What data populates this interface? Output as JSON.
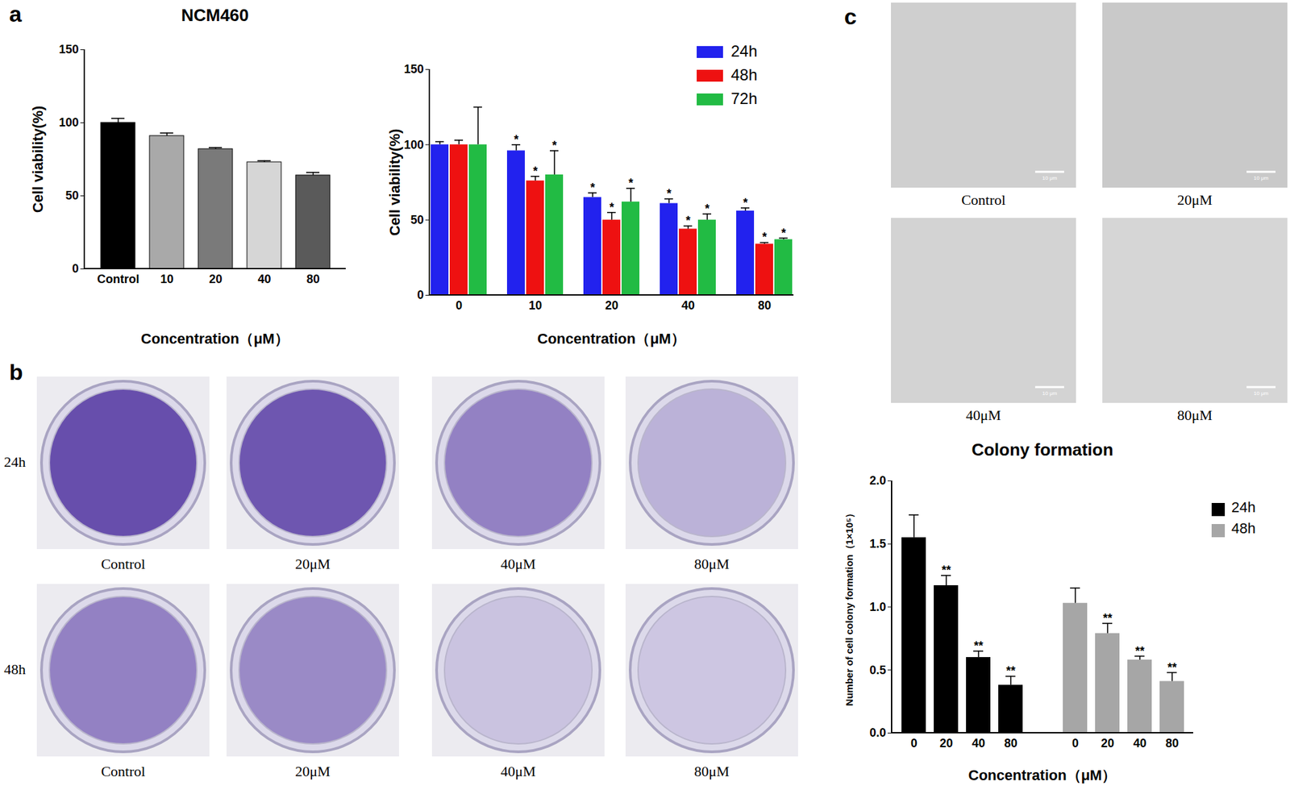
{
  "panel_labels": [
    "a",
    "b",
    "c"
  ],
  "chart_data": [
    {
      "type": "bar",
      "title": "NCM460",
      "x_label": "Concentration（μM）",
      "y_label": "Cell viability(%)",
      "categories": [
        "Control",
        "10",
        "20",
        "40",
        "80"
      ],
      "values": [
        100,
        91,
        82,
        73,
        64
      ],
      "errors": [
        3,
        2,
        1,
        1,
        2
      ],
      "colors": [
        "#000000",
        "#a9a9a9",
        "#7a7a7a",
        "#d6d6d6",
        "#5a5a5a"
      ],
      "ylim": [
        0,
        150
      ],
      "yticks": [
        0,
        50,
        100,
        150
      ],
      "grid": false
    },
    {
      "type": "grouped_bar",
      "x_label": "Concentration（μM）",
      "y_label": "Cell viability(%)",
      "categories": [
        "0",
        "10",
        "20",
        "40",
        "80"
      ],
      "series": [
        {
          "name": "24h",
          "color": "#2222ee",
          "values": [
            100,
            96,
            65,
            61,
            56
          ],
          "errors": [
            2,
            4,
            3,
            3,
            2
          ],
          "annotations": [
            null,
            "*",
            "*",
            "*",
            "*"
          ]
        },
        {
          "name": "48h",
          "color": "#ee1111",
          "values": [
            100,
            76,
            50,
            44,
            34
          ],
          "errors": [
            3,
            3,
            5,
            2,
            1
          ],
          "annotations": [
            null,
            "*",
            "*",
            "*",
            "*"
          ]
        },
        {
          "name": "72h",
          "color": "#22bb44",
          "values": [
            100,
            80,
            62,
            50,
            37
          ],
          "errors": [
            25,
            16,
            9,
            4,
            1
          ],
          "annotations": [
            null,
            "*",
            "*",
            "*",
            "*"
          ]
        }
      ],
      "ylim": [
        0,
        150
      ],
      "yticks": [
        0,
        50,
        100,
        150
      ],
      "legend": "top-right",
      "grid": false
    },
    {
      "type": "bar_by_series",
      "title": "Colony formation",
      "x_label": "Concentration（μM）",
      "y_label": "Number of cell colony formation（1×10⁵）",
      "categories": [
        "0",
        "20",
        "40",
        "80"
      ],
      "series": [
        {
          "name": "24h",
          "color": "#000000",
          "values": [
            1.55,
            1.17,
            0.6,
            0.38
          ],
          "errors": [
            0.18,
            0.08,
            0.05,
            0.07
          ],
          "annotations": [
            null,
            "**",
            "**",
            "**"
          ]
        },
        {
          "name": "48h",
          "color": "#a6a6a6",
          "values": [
            1.03,
            0.79,
            0.58,
            0.41
          ],
          "errors": [
            0.12,
            0.08,
            0.03,
            0.07
          ],
          "annotations": [
            null,
            "**",
            "**",
            "**"
          ]
        }
      ],
      "ylim": [
        0,
        2
      ],
      "yticks": [
        {
          "value": 0,
          "label": "0.0"
        },
        0.5,
        {
          "value": 1,
          "label": "1.0"
        },
        1.5,
        {
          "value": 2,
          "label": "2.0"
        }
      ],
      "legend": "right",
      "grid": false
    }
  ],
  "images": {
    "dishes": {
      "rows": [
        "24h",
        "48h"
      ],
      "columns": [
        "Control",
        "20μM",
        "40μM",
        "80μM"
      ]
    },
    "micrographs": {
      "labels": [
        "Control",
        "20μM",
        "40μM",
        "80μM"
      ],
      "scale_bar": "10 μm"
    }
  }
}
